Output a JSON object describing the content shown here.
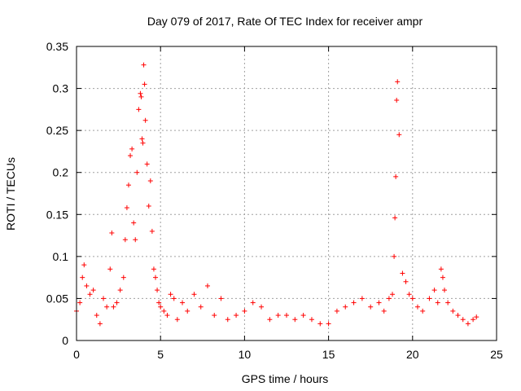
{
  "chart_data": {
    "type": "scatter",
    "title": "Day 079 of 2017, Rate Of TEC Index for receiver ampr",
    "xlabel": "GPS time / hours",
    "ylabel": "ROTI / TECUs",
    "xlim": [
      0,
      25
    ],
    "ylim": [
      0,
      0.35
    ],
    "x_ticks": [
      "0",
      "5",
      "10",
      "15",
      "20",
      "25"
    ],
    "y_ticks": [
      "0",
      "0.05",
      "0.1",
      "0.15",
      "0.2",
      "0.25",
      "0.3",
      "0.35"
    ],
    "grid": true,
    "marker": "plus",
    "color": "#ff0000",
    "series": [
      {
        "x": [
          0.0,
          0.2,
          0.35,
          0.45,
          0.6,
          0.8,
          1.0,
          1.2,
          1.4,
          1.6,
          1.8,
          2.0,
          2.1,
          2.2,
          2.4,
          2.6,
          2.8,
          2.9,
          3.0,
          3.1,
          3.2,
          3.3,
          3.4,
          3.5,
          3.6,
          3.7,
          3.8,
          3.85,
          3.9,
          3.95,
          4.0,
          4.05,
          4.1,
          4.2,
          4.3,
          4.4,
          4.5,
          4.6,
          4.7,
          4.8,
          4.9,
          5.0,
          5.2,
          5.4,
          5.6,
          5.8,
          6.0,
          6.3,
          6.6,
          7.0,
          7.4,
          7.8,
          8.2,
          8.6,
          9.0,
          9.5,
          10.0,
          10.5,
          11.0,
          11.5,
          12.0,
          12.5,
          13.0,
          13.5,
          14.0,
          14.5,
          15.0,
          15.5,
          16.0,
          16.5,
          17.0,
          17.5,
          18.0,
          18.3,
          18.6,
          18.8,
          18.9,
          18.95,
          19.0,
          19.05,
          19.1,
          19.2,
          19.4,
          19.6,
          19.8,
          20.0,
          20.3,
          20.6,
          21.0,
          21.3,
          21.5,
          21.7,
          21.8,
          21.9,
          22.1,
          22.4,
          22.7,
          23.0,
          23.3,
          23.6,
          23.8
        ],
        "y": [
          0.035,
          0.045,
          0.075,
          0.09,
          0.065,
          0.055,
          0.06,
          0.03,
          0.02,
          0.05,
          0.04,
          0.085,
          0.128,
          0.04,
          0.045,
          0.06,
          0.075,
          0.12,
          0.158,
          0.185,
          0.22,
          0.228,
          0.14,
          0.12,
          0.2,
          0.275,
          0.294,
          0.29,
          0.24,
          0.235,
          0.328,
          0.305,
          0.262,
          0.21,
          0.16,
          0.19,
          0.13,
          0.085,
          0.075,
          0.06,
          0.045,
          0.04,
          0.035,
          0.03,
          0.055,
          0.05,
          0.025,
          0.045,
          0.035,
          0.055,
          0.04,
          0.065,
          0.03,
          0.05,
          0.025,
          0.03,
          0.035,
          0.045,
          0.04,
          0.025,
          0.03,
          0.03,
          0.025,
          0.03,
          0.025,
          0.02,
          0.02,
          0.035,
          0.04,
          0.045,
          0.05,
          0.04,
          0.045,
          0.035,
          0.05,
          0.055,
          0.1,
          0.146,
          0.195,
          0.286,
          0.308,
          0.245,
          0.08,
          0.07,
          0.055,
          0.05,
          0.04,
          0.035,
          0.05,
          0.06,
          0.045,
          0.085,
          0.075,
          0.06,
          0.045,
          0.035,
          0.03,
          0.025,
          0.02,
          0.025,
          0.028
        ]
      }
    ]
  }
}
